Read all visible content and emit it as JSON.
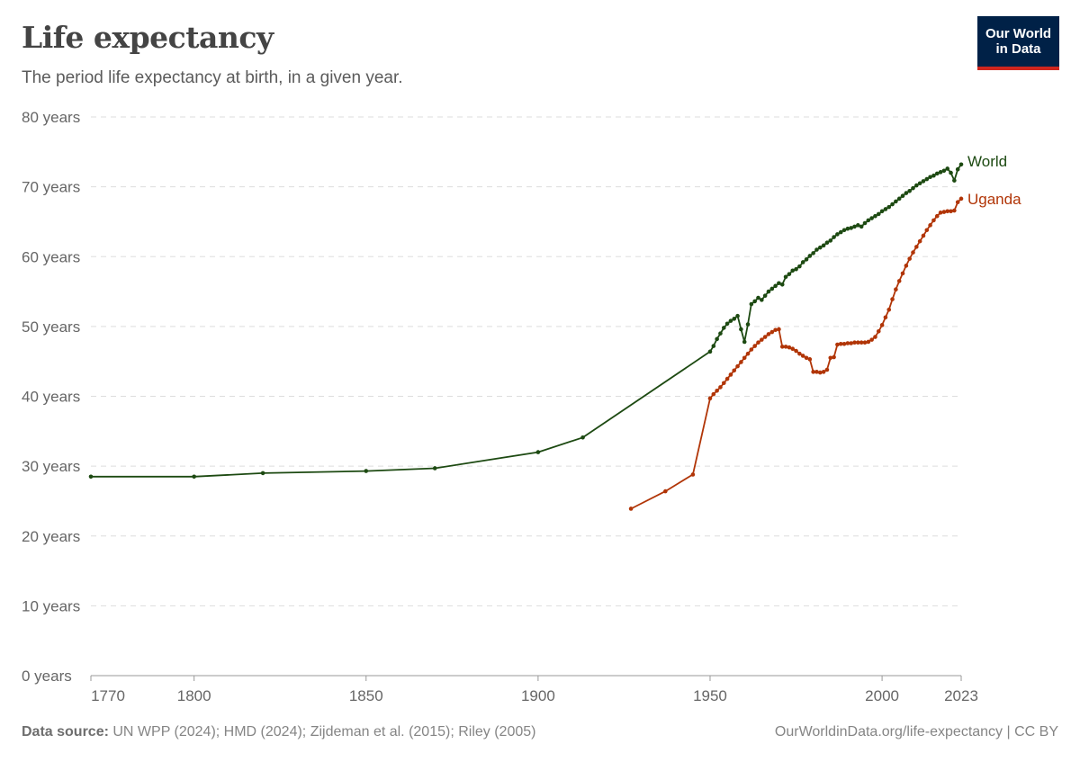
{
  "header": {
    "title": "Life expectancy",
    "subtitle": "The period life expectancy at birth, in a given year.",
    "logo_line1": "Our World",
    "logo_line2": "in Data"
  },
  "footer": {
    "source_label": "Data source:",
    "source_text": " UN WPP (2024); HMD (2024); Zijdeman et al. (2015); Riley (2005)",
    "url": "OurWorldinData.org/life-expectancy | CC BY"
  },
  "chart_data": {
    "type": "line",
    "title": "Life expectancy",
    "ylim": [
      0,
      80
    ],
    "xlim": [
      1770,
      2023
    ],
    "yticks": [
      0,
      10,
      20,
      30,
      40,
      50,
      60,
      70,
      80
    ],
    "ytick_labels": [
      "0 years",
      "10 years",
      "20 years",
      "30 years",
      "40 years",
      "50 years",
      "60 years",
      "70 years",
      "80 years"
    ],
    "xticks": [
      1770,
      1800,
      1850,
      1900,
      1950,
      2000,
      2023
    ],
    "xtick_labels": [
      "1770",
      "1800",
      "1850",
      "1900",
      "1950",
      "2000",
      "2023"
    ],
    "grid": true,
    "legend": "inline-right",
    "series": [
      {
        "name": "World",
        "color": "#1d4a12",
        "x": [
          1770,
          1800,
          1820,
          1850,
          1870,
          1900,
          1913,
          1950,
          1951,
          1952,
          1953,
          1954,
          1955,
          1956,
          1957,
          1958,
          1959,
          1960,
          1961,
          1962,
          1963,
          1964,
          1965,
          1966,
          1967,
          1968,
          1969,
          1970,
          1971,
          1972,
          1973,
          1974,
          1975,
          1976,
          1977,
          1978,
          1979,
          1980,
          1981,
          1982,
          1983,
          1984,
          1985,
          1986,
          1987,
          1988,
          1989,
          1990,
          1991,
          1992,
          1993,
          1994,
          1995,
          1996,
          1997,
          1998,
          1999,
          2000,
          2001,
          2002,
          2003,
          2004,
          2005,
          2006,
          2007,
          2008,
          2009,
          2010,
          2011,
          2012,
          2013,
          2014,
          2015,
          2016,
          2017,
          2018,
          2019,
          2020,
          2021,
          2022,
          2023
        ],
        "y": [
          28.5,
          28.5,
          29.0,
          29.3,
          29.7,
          32.0,
          34.1,
          46.4,
          47.2,
          48.2,
          49.0,
          49.8,
          50.4,
          50.8,
          51.1,
          51.5,
          49.6,
          47.8,
          50.3,
          53.2,
          53.6,
          54.1,
          53.8,
          54.4,
          55.0,
          55.4,
          55.8,
          56.2,
          56.0,
          57.1,
          57.5,
          58.0,
          58.2,
          58.6,
          59.2,
          59.6,
          60.1,
          60.5,
          61.0,
          61.3,
          61.6,
          62.0,
          62.3,
          62.8,
          63.2,
          63.5,
          63.8,
          64.0,
          64.1,
          64.3,
          64.5,
          64.3,
          64.8,
          65.2,
          65.5,
          65.8,
          66.1,
          66.5,
          66.8,
          67.1,
          67.5,
          67.9,
          68.3,
          68.7,
          69.1,
          69.4,
          69.8,
          70.2,
          70.5,
          70.8,
          71.1,
          71.4,
          71.6,
          71.9,
          72.1,
          72.3,
          72.6,
          72.0,
          70.9,
          72.5,
          73.2
        ]
      },
      {
        "name": "Uganda",
        "color": "#b13507",
        "x": [
          1927,
          1937,
          1945,
          1950,
          1951,
          1952,
          1953,
          1954,
          1955,
          1956,
          1957,
          1958,
          1959,
          1960,
          1961,
          1962,
          1963,
          1964,
          1965,
          1966,
          1967,
          1968,
          1969,
          1970,
          1971,
          1972,
          1973,
          1974,
          1975,
          1976,
          1977,
          1978,
          1979,
          1980,
          1981,
          1982,
          1983,
          1984,
          1985,
          1986,
          1987,
          1988,
          1989,
          1990,
          1991,
          1992,
          1993,
          1994,
          1995,
          1996,
          1997,
          1998,
          1999,
          2000,
          2001,
          2002,
          2003,
          2004,
          2005,
          2006,
          2007,
          2008,
          2009,
          2010,
          2011,
          2012,
          2013,
          2014,
          2015,
          2016,
          2017,
          2018,
          2019,
          2020,
          2021,
          2022,
          2023
        ],
        "y": [
          23.9,
          26.4,
          28.8,
          39.7,
          40.3,
          40.8,
          41.3,
          41.9,
          42.5,
          43.1,
          43.7,
          44.3,
          44.9,
          45.5,
          46.1,
          46.7,
          47.2,
          47.7,
          48.1,
          48.5,
          48.9,
          49.2,
          49.5,
          49.6,
          47.1,
          47.1,
          47.0,
          46.8,
          46.5,
          46.1,
          45.8,
          45.5,
          45.3,
          43.5,
          43.5,
          43.4,
          43.5,
          43.8,
          45.5,
          45.6,
          47.4,
          47.5,
          47.5,
          47.6,
          47.6,
          47.7,
          47.7,
          47.7,
          47.7,
          47.8,
          48.1,
          48.5,
          49.3,
          50.2,
          51.3,
          52.4,
          53.9,
          55.3,
          56.5,
          57.6,
          58.7,
          59.7,
          60.6,
          61.4,
          62.2,
          63.0,
          63.8,
          64.5,
          65.2,
          65.8,
          66.3,
          66.4,
          66.5,
          66.5,
          66.6,
          67.8,
          68.3
        ]
      }
    ]
  }
}
